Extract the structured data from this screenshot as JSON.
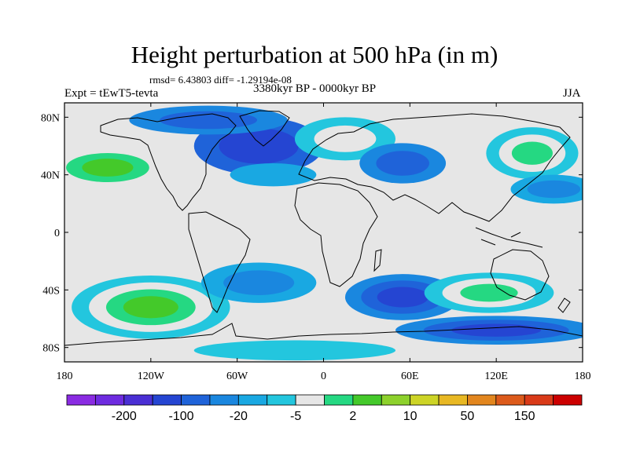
{
  "header": {
    "title": "Height perturbation at 500 hPa (in m)",
    "stats": "rmsd= 6.43803 diff= -1.29194e-08",
    "experiment": "Expt = tEwT5-tevta",
    "period": "3380kyr BP - 0000kyr BP",
    "season": "JJA"
  },
  "map": {
    "lon_range": [
      -180,
      180
    ],
    "lat_range": [
      -90,
      90
    ],
    "ocean_color": "#e6e6e6",
    "y_ticks": [
      {
        "label": "80N",
        "lat": 80
      },
      {
        "label": "40N",
        "lat": 40
      },
      {
        "label": "0",
        "lat": 0
      },
      {
        "label": "40S",
        "lat": -40
      },
      {
        "label": "80S",
        "lat": -80
      }
    ],
    "x_ticks": [
      {
        "label": "180",
        "lon": -180
      },
      {
        "label": "120W",
        "lon": -120
      },
      {
        "label": "60W",
        "lon": -60
      },
      {
        "label": "0",
        "lon": 0
      },
      {
        "label": "60E",
        "lon": 60
      },
      {
        "label": "120E",
        "lon": 120
      },
      {
        "label": "180",
        "lon": 180
      }
    ],
    "anomalies": [
      {
        "name": "alaska-positive",
        "lon": -150,
        "lat": 45,
        "rlon": 40,
        "rlat": 14,
        "levels": [
          8,
          9,
          10
        ]
      },
      {
        "name": "north-atlantic-negative",
        "lon": -45,
        "lat": 60,
        "rlon": 45,
        "rlat": 20,
        "levels": [
          4,
          3
        ]
      },
      {
        "name": "arctic-negative",
        "lon": -80,
        "lat": 78,
        "rlon": 55,
        "rlat": 10,
        "levels": [
          5,
          4
        ]
      },
      {
        "name": "europe-positive",
        "lon": 15,
        "lat": 65,
        "rlon": 35,
        "rlat": 15,
        "levels": [
          7,
          8
        ]
      },
      {
        "name": "siberia-negative",
        "lon": 55,
        "lat": 48,
        "rlon": 30,
        "rlat": 14,
        "levels": [
          5,
          4
        ]
      },
      {
        "name": "east-asia-positive",
        "lon": 145,
        "lat": 55,
        "rlon": 32,
        "rlat": 18,
        "levels": [
          7,
          8,
          9
        ]
      },
      {
        "name": "north-pacific-negative",
        "lon": 160,
        "lat": 30,
        "rlon": 30,
        "rlat": 10,
        "levels": [
          6,
          5
        ]
      },
      {
        "name": "atlantic-negative",
        "lon": -35,
        "lat": 40,
        "rlon": 30,
        "rlat": 8,
        "levels": [
          6
        ]
      },
      {
        "name": "south-pacific-positive",
        "lon": -120,
        "lat": -52,
        "rlon": 55,
        "rlat": 22,
        "levels": [
          7,
          8,
          9,
          10
        ]
      },
      {
        "name": "south-atlantic-negative",
        "lon": -45,
        "lat": -35,
        "rlon": 40,
        "rlat": 14,
        "levels": [
          6,
          5
        ]
      },
      {
        "name": "indian-ocean-negative",
        "lon": 55,
        "lat": -45,
        "rlon": 40,
        "rlat": 16,
        "levels": [
          5,
          4,
          3
        ]
      },
      {
        "name": "australia-positive",
        "lon": 115,
        "lat": -42,
        "rlon": 45,
        "rlat": 14,
        "levels": [
          7,
          8,
          9
        ]
      },
      {
        "name": "southern-ocean-negative",
        "lon": 120,
        "lat": -68,
        "rlon": 70,
        "rlat": 10,
        "levels": [
          5,
          4,
          3
        ]
      },
      {
        "name": "antarctic-positive",
        "lon": -20,
        "lat": -82,
        "rlon": 70,
        "rlat": 7,
        "levels": [
          7
        ]
      }
    ]
  },
  "colorbar": {
    "colors": [
      "#8a2be2",
      "#6e2be0",
      "#4a2fd4",
      "#2545d2",
      "#1f63d9",
      "#1a87df",
      "#19a8e2",
      "#23c6de",
      "#e6e6e6",
      "#25d882",
      "#44c92a",
      "#8dd12c",
      "#cdd426",
      "#e8b823",
      "#e2861e",
      "#dc5a1b",
      "#d93a18",
      "#cc0000"
    ],
    "labels": [
      {
        "text": "-200",
        "after_box": 2
      },
      {
        "text": "-100",
        "after_box": 4
      },
      {
        "text": "-20",
        "after_box": 6
      },
      {
        "text": "-5",
        "after_box": 8
      },
      {
        "text": "2",
        "after_box": 10
      },
      {
        "text": "10",
        "after_box": 12
      },
      {
        "text": "50",
        "after_box": 14
      },
      {
        "text": "150",
        "after_box": 16
      }
    ]
  }
}
